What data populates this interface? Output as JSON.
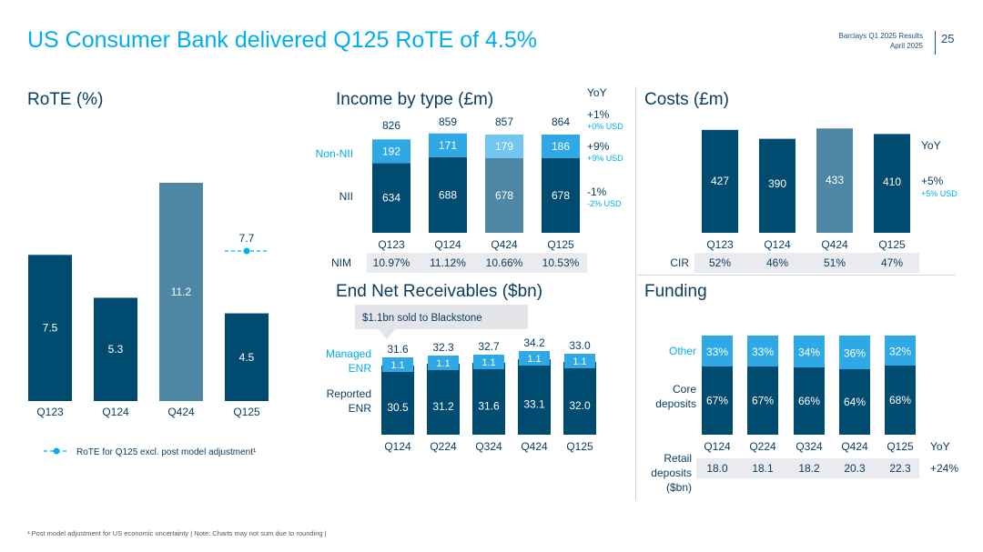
{
  "header": {
    "title": "US Consumer Bank delivered Q125 RoTE of 4.5%",
    "report": "Barclays Q1 2025 Results",
    "date": "April 2025",
    "page": "25"
  },
  "colors": {
    "dark": "#004b70",
    "mid": "#4d87a3",
    "light": "#2fa9e6",
    "accent": "#00aeef",
    "text": "#0a3d62",
    "grey": "#e9ebee"
  },
  "footnote": "¹ Post model adjustment for US economic uncertainty | Note: Charts may not sum due to rounding |",
  "chart_data": [
    {
      "id": "rote",
      "type": "bar",
      "title": "RoTE (%)",
      "categories": [
        "Q123",
        "Q124",
        "Q424",
        "Q125"
      ],
      "values": [
        7.5,
        5.3,
        11.2,
        4.5
      ],
      "highlight_index": 2,
      "marker": {
        "label": "7.7",
        "value": 7.7,
        "category": "Q125"
      },
      "legend": "RoTE for Q125 excl. post model adjustment¹",
      "ylim": [
        0,
        12
      ]
    },
    {
      "id": "income",
      "type": "bar",
      "stacked": true,
      "title": "Income by type (£m)",
      "categories": [
        "Q123",
        "Q124",
        "Q424",
        "Q125"
      ],
      "series": [
        {
          "name": "NII",
          "values": [
            634,
            688,
            678,
            678
          ]
        },
        {
          "name": "Non-NII",
          "values": [
            192,
            171,
            179,
            186
          ]
        }
      ],
      "totals": [
        826,
        859,
        857,
        864
      ],
      "highlight_index": 2,
      "yoy_header": "YoY",
      "yoy": [
        {
          "main": "+1%",
          "sub": "+0% USD"
        },
        {
          "main": "+9%",
          "sub": "+9% USD"
        },
        {
          "main": "-1%",
          "sub": "-2% USD"
        }
      ],
      "table": {
        "label": "NIM",
        "values": [
          "10.97%",
          "11.12%",
          "10.66%",
          "10.53%"
        ]
      }
    },
    {
      "id": "costs",
      "type": "bar",
      "title": "Costs (£m)",
      "categories": [
        "Q123",
        "Q124",
        "Q424",
        "Q125"
      ],
      "values": [
        427,
        390,
        433,
        410
      ],
      "highlight_index": 2,
      "yoy_header": "YoY",
      "yoy": {
        "main": "+5%",
        "sub": "+5% USD"
      },
      "table": {
        "label": "CIR",
        "values": [
          "52%",
          "46%",
          "51%",
          "47%"
        ]
      }
    },
    {
      "id": "enr",
      "type": "bar",
      "stacked": true,
      "title": "End Net Receivables ($bn)",
      "categories": [
        "Q124",
        "Q224",
        "Q324",
        "Q424",
        "Q125"
      ],
      "series": [
        {
          "name": "Reported ENR",
          "values": [
            30.5,
            31.2,
            31.6,
            33.1,
            32.0
          ]
        },
        {
          "name": "Managed ENR",
          "values": [
            1.1,
            1.1,
            1.1,
            1.1,
            1.1
          ]
        }
      ],
      "totals": [
        "31.6",
        "32.3",
        "32.7",
        "34.2",
        "33.0"
      ],
      "series_labels": {
        "managed": [
          "Managed",
          "ENR"
        ],
        "reported": [
          "Reported",
          "ENR"
        ]
      },
      "annotation": "$1.1bn sold to Blackstone"
    },
    {
      "id": "funding",
      "type": "bar",
      "stacked": true,
      "title": "Funding",
      "categories": [
        "Q124",
        "Q224",
        "Q324",
        "Q424",
        "Q125"
      ],
      "series": [
        {
          "name": "Core deposits",
          "values": [
            "67%",
            "67%",
            "66%",
            "64%",
            "68%"
          ]
        },
        {
          "name": "Other",
          "values": [
            "33%",
            "33%",
            "34%",
            "36%",
            "32%"
          ]
        }
      ],
      "series_labels": {
        "other": "Other",
        "core": [
          "Core",
          "deposits"
        ]
      },
      "yoy_header": "YoY",
      "table": {
        "label": [
          "Retail",
          "deposits",
          "($bn)"
        ],
        "values": [
          "18.0",
          "18.1",
          "18.2",
          "20.3",
          "22.3"
        ],
        "yoy": "+24%"
      }
    }
  ]
}
